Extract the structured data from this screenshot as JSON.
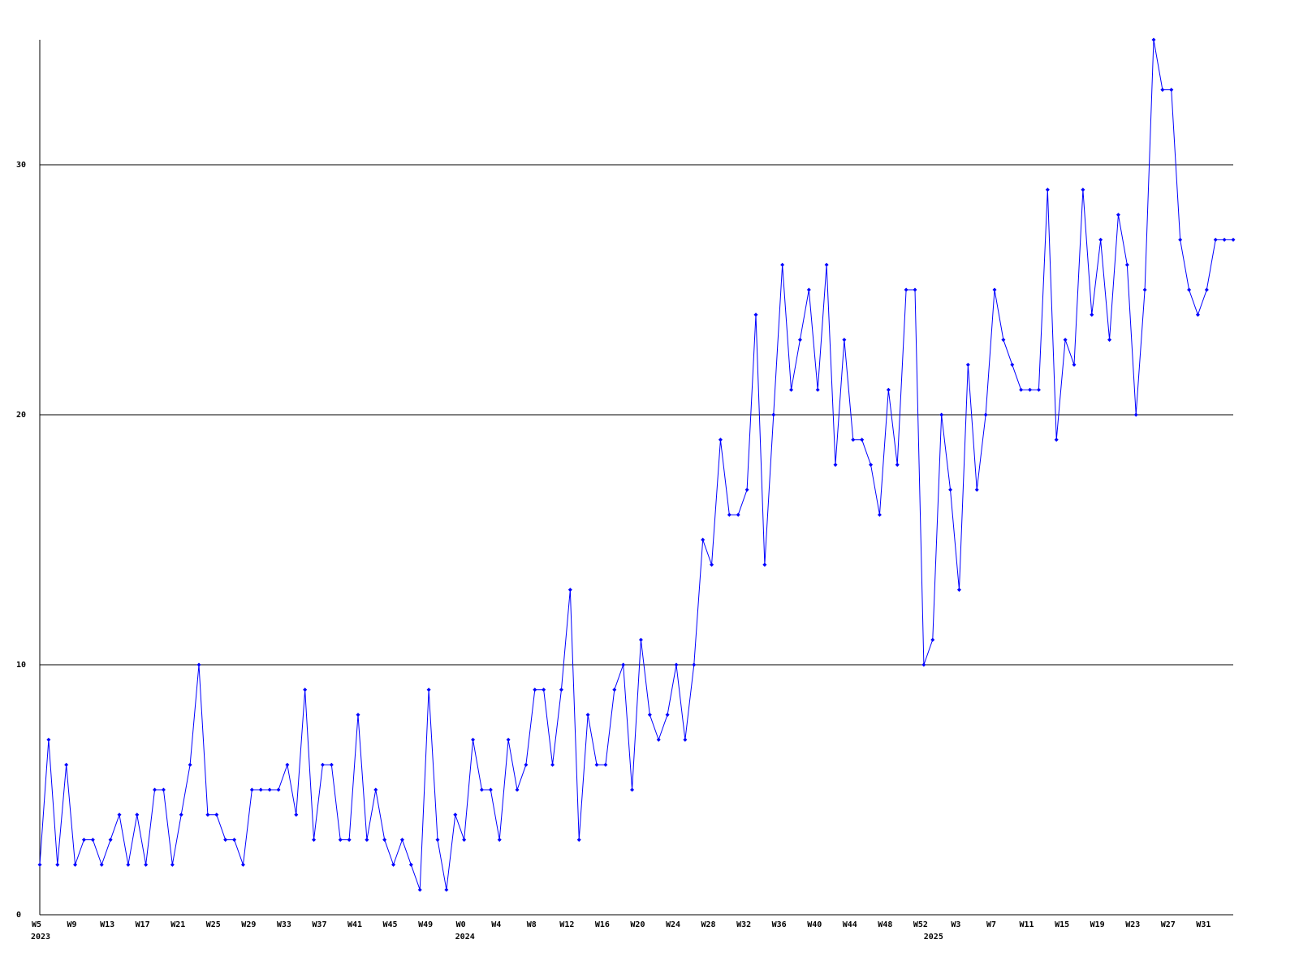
{
  "chart_data": {
    "type": "line",
    "categories": [
      "W5",
      null,
      null,
      null,
      "W9",
      null,
      null,
      null,
      "W13",
      null,
      null,
      null,
      "W17",
      null,
      null,
      null,
      "W21",
      null,
      null,
      null,
      "W25",
      null,
      null,
      null,
      "W29",
      null,
      null,
      null,
      "W33",
      null,
      null,
      null,
      "W37",
      null,
      null,
      null,
      "W41",
      null,
      null,
      null,
      "W45",
      null,
      null,
      null,
      "W49",
      null,
      null,
      null,
      "W0",
      null,
      null,
      null,
      "W4",
      null,
      null,
      null,
      "W8",
      null,
      null,
      null,
      "W12",
      null,
      null,
      null,
      "W16",
      null,
      null,
      null,
      "W20",
      null,
      null,
      null,
      "W24",
      null,
      null,
      null,
      "W28",
      null,
      null,
      null,
      "W32",
      null,
      null,
      null,
      "W36",
      null,
      null,
      null,
      "W40",
      null,
      null,
      null,
      "W44",
      null,
      null,
      null,
      "W48",
      null,
      null,
      null,
      "W52",
      null,
      null,
      null,
      "W3",
      null,
      null,
      null,
      "W7",
      null,
      null,
      null,
      "W11",
      null,
      null,
      null,
      "W15",
      null,
      null,
      null,
      "W19",
      null,
      null,
      null,
      "W23",
      null,
      null,
      null,
      "W27",
      null,
      null,
      null,
      "W31",
      null,
      null,
      null
    ],
    "year_labels": [
      "2023",
      null,
      null,
      null,
      null,
      null,
      null,
      null,
      null,
      null,
      null,
      null,
      null,
      null,
      null,
      null,
      null,
      null,
      null,
      null,
      null,
      null,
      null,
      null,
      null,
      null,
      null,
      null,
      null,
      null,
      null,
      null,
      null,
      null,
      null,
      null,
      null,
      null,
      null,
      null,
      null,
      null,
      null,
      null,
      null,
      null,
      null,
      null,
      "2024",
      null,
      null,
      null,
      null,
      null,
      null,
      null,
      null,
      null,
      null,
      null,
      null,
      null,
      null,
      null,
      null,
      null,
      null,
      null,
      null,
      null,
      null,
      null,
      null,
      null,
      null,
      null,
      null,
      null,
      null,
      null,
      null,
      null,
      null,
      null,
      null,
      null,
      null,
      null,
      null,
      null,
      null,
      null,
      null,
      null,
      null,
      null,
      null,
      null,
      null,
      null,
      null,
      "2025",
      null,
      null,
      null,
      null,
      null,
      null,
      null,
      null,
      null,
      null,
      null,
      null,
      null,
      null,
      null,
      null,
      null,
      null,
      null,
      null,
      null,
      null,
      null,
      null,
      null,
      null,
      null,
      null,
      null,
      null,
      null,
      null,
      null,
      null
    ],
    "values": [
      2,
      7,
      2,
      6,
      2,
      3,
      3,
      2,
      3,
      4,
      2,
      4,
      2,
      5,
      5,
      2,
      4,
      6,
      10,
      4,
      4,
      3,
      3,
      2,
      5,
      5,
      5,
      5,
      6,
      4,
      9,
      3,
      6,
      6,
      3,
      3,
      8,
      3,
      5,
      3,
      2,
      3,
      2,
      1,
      9,
      3,
      1,
      4,
      3,
      7,
      5,
      5,
      3,
      7,
      5,
      6,
      9,
      9,
      6,
      9,
      13,
      3,
      8,
      6,
      6,
      9,
      10,
      5,
      11,
      8,
      7,
      8,
      10,
      7,
      10,
      15,
      14,
      19,
      16,
      16,
      17,
      24,
      14,
      20,
      26,
      21,
      23,
      25,
      21,
      26,
      18,
      23,
      19,
      19,
      18,
      16,
      21,
      18,
      25,
      25,
      10,
      11,
      20,
      17,
      13,
      22,
      17,
      20,
      25,
      23,
      22,
      21,
      21,
      21,
      29,
      19,
      23,
      22,
      29,
      24,
      27,
      23,
      28,
      26,
      20,
      25,
      35,
      33,
      33,
      27,
      25,
      24,
      25,
      27,
      27,
      27
    ],
    "color": "#0000ff",
    "ylim": [
      0,
      35
    ],
    "yticks": [
      0,
      10,
      20,
      30
    ],
    "grid": true
  }
}
